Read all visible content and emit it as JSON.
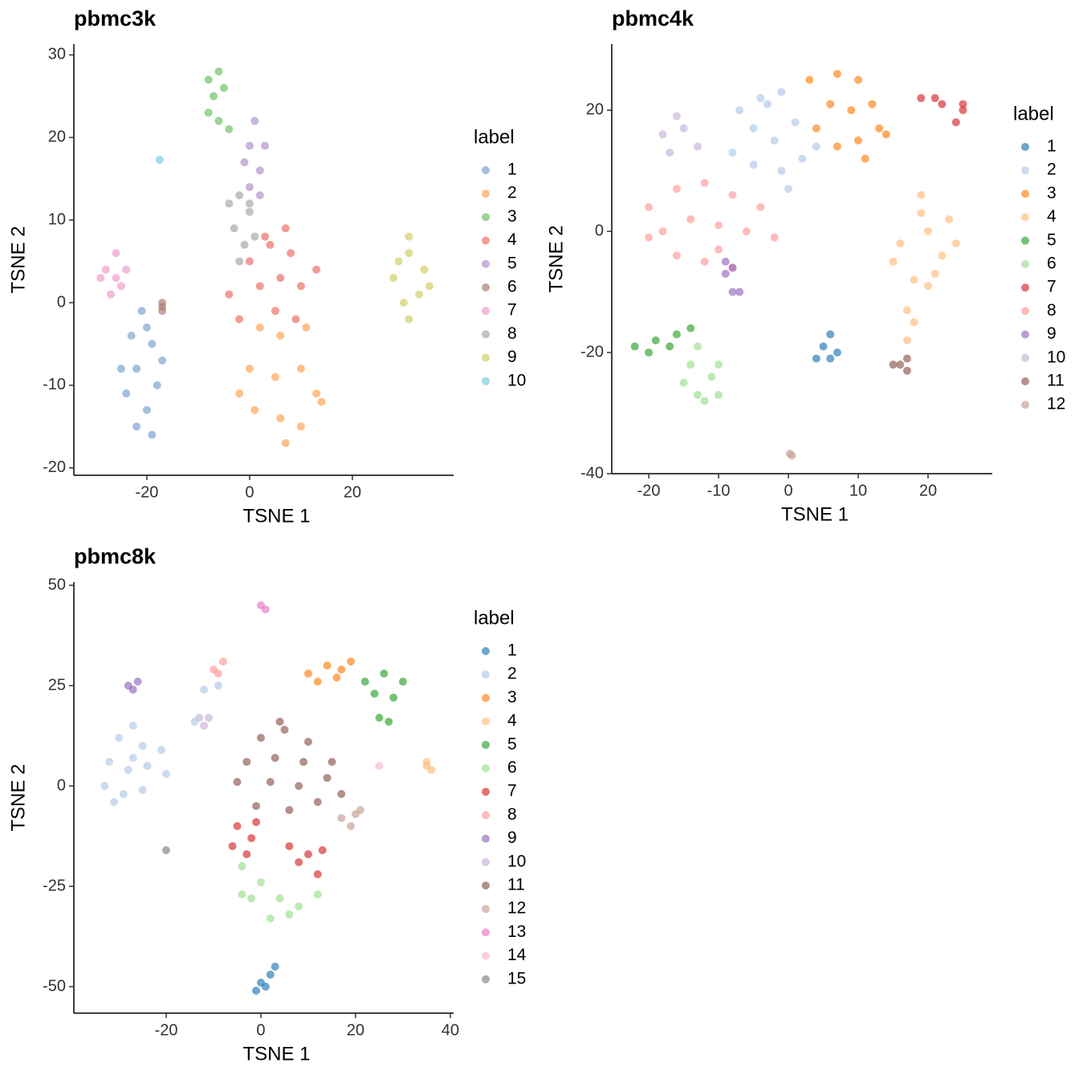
{
  "chart_data": [
    {
      "type": "scatter",
      "title": "pbmc3k",
      "x_label": "TSNE 1",
      "y_label": "TSNE 2",
      "legend_title": "label",
      "xlim": [
        -34.2,
        39.7
      ],
      "ylim": [
        -20.9,
        31.3
      ],
      "xticks": [
        -20,
        0,
        20
      ],
      "yticks": [
        -20,
        -10,
        0,
        10,
        20,
        30
      ],
      "series": [
        {
          "name": "1",
          "color": "#729ECE",
          "x": [
            -21,
            -23,
            -19,
            -22,
            -18,
            -24,
            -20,
            -22,
            -19,
            -17,
            -25,
            -20
          ],
          "y": [
            -1,
            -4,
            -5,
            -8,
            -10,
            -11,
            -13,
            -15,
            -16,
            -7,
            -8,
            -3
          ]
        },
        {
          "name": "2",
          "color": "#FF9E4A",
          "x": [
            2,
            6,
            11,
            0,
            5,
            10,
            13,
            1,
            6,
            10,
            7,
            14,
            -2
          ],
          "y": [
            -3,
            -4,
            -3,
            -8,
            -9,
            -8,
            -11,
            -13,
            -14,
            -15,
            -17,
            -12,
            -11
          ]
        },
        {
          "name": "3",
          "color": "#67BF5C",
          "x": [
            -8,
            -7,
            -5,
            -8,
            -6,
            -6,
            -4
          ],
          "y": [
            27,
            25,
            26,
            23,
            28,
            22,
            21
          ]
        },
        {
          "name": "4",
          "color": "#ED665D",
          "x": [
            0,
            4,
            8,
            -4,
            2,
            6,
            10,
            13,
            -2,
            5,
            9,
            7,
            3
          ],
          "y": [
            5,
            7,
            6,
            1,
            2,
            3,
            2,
            4,
            -2,
            -1,
            -2,
            9,
            8
          ]
        },
        {
          "name": "5",
          "color": "#AD8BC9",
          "x": [
            0,
            1,
            -1,
            2,
            3,
            0,
            2
          ],
          "y": [
            19,
            22,
            17,
            16,
            19,
            14,
            13
          ]
        },
        {
          "name": "6",
          "color": "#A8786E",
          "x": [
            -17,
            -17,
            -17
          ],
          "y": [
            -1,
            0,
            -0.5
          ]
        },
        {
          "name": "7",
          "color": "#ED97CA",
          "x": [
            -28,
            -26,
            -25,
            -27,
            -29,
            -24,
            -26
          ],
          "y": [
            4,
            6,
            2,
            1,
            3,
            4,
            3
          ]
        },
        {
          "name": "8",
          "color": "#A2A2A2",
          "x": [
            -2,
            0,
            -3,
            -1,
            1,
            -2,
            0,
            -4
          ],
          "y": [
            13,
            11,
            9,
            7,
            8,
            5,
            12,
            12
          ]
        },
        {
          "name": "9",
          "color": "#CDCC5D",
          "x": [
            31,
            28,
            34,
            30,
            33,
            31,
            29,
            35,
            31
          ],
          "y": [
            6,
            3,
            4,
            0,
            1,
            -2,
            5,
            2,
            8
          ]
        },
        {
          "name": "10",
          "color": "#6DCCDA",
          "x": [
            -17.5
          ],
          "y": [
            17.3
          ]
        }
      ]
    },
    {
      "type": "scatter",
      "title": "pbmc4k",
      "x_label": "TSNE 1",
      "y_label": "TSNE 2",
      "legend_title": "label",
      "xlim": [
        -25.3,
        29.2
      ],
      "ylim": [
        -40,
        30.9
      ],
      "xticks": [
        -20,
        -10,
        0,
        10,
        20
      ],
      "yticks": [
        -40,
        -20,
        0,
        20
      ],
      "series": [
        {
          "name": "1",
          "color": "#1F77B4",
          "x": [
            5,
            6,
            7,
            4,
            6
          ],
          "y": [
            -19,
            -17,
            -20,
            -21,
            -21
          ]
        },
        {
          "name": "2",
          "color": "#AEC7E8",
          "x": [
            -7,
            -4,
            -1,
            -5,
            -2,
            1,
            -5,
            -1,
            2,
            4,
            -8,
            0,
            -3
          ],
          "y": [
            20,
            22,
            23,
            17,
            15,
            18,
            11,
            10,
            12,
            14,
            13,
            7,
            21
          ]
        },
        {
          "name": "3",
          "color": "#FF7F0E",
          "x": [
            3,
            7,
            10,
            6,
            9,
            12,
            13,
            10,
            7,
            4,
            11,
            14
          ],
          "y": [
            25,
            26,
            25,
            21,
            20,
            21,
            17,
            15,
            14,
            17,
            12,
            16
          ]
        },
        {
          "name": "4",
          "color": "#FFBB78",
          "x": [
            16,
            20,
            22,
            18,
            23,
            19,
            17,
            20,
            15,
            21,
            18,
            17,
            24,
            19
          ],
          "y": [
            -2,
            0,
            -4,
            -8,
            2,
            3,
            -13,
            -9,
            -5,
            -7,
            -15,
            -18,
            -2,
            6
          ]
        },
        {
          "name": "5",
          "color": "#2CA02C",
          "x": [
            -22,
            -19,
            -16,
            -20,
            -14,
            -17
          ],
          "y": [
            -19,
            -18,
            -17,
            -20,
            -16,
            -19
          ]
        },
        {
          "name": "6",
          "color": "#98DF8A",
          "x": [
            -14,
            -11,
            -13,
            -10,
            -15,
            -12,
            -10,
            -13
          ],
          "y": [
            -22,
            -24,
            -27,
            -22,
            -25,
            -28,
            -27,
            -19
          ]
        },
        {
          "name": "7",
          "color": "#D62728",
          "x": [
            19,
            22,
            25,
            24,
            21,
            25
          ],
          "y": [
            22,
            21,
            20,
            18,
            22,
            21
          ]
        },
        {
          "name": "8",
          "color": "#FF9896",
          "x": [
            -20,
            -16,
            -12,
            -8,
            -4,
            -18,
            -14,
            -10,
            -6,
            -2,
            -16,
            -12,
            -8,
            -20,
            -10
          ],
          "y": [
            4,
            7,
            8,
            6,
            4,
            0,
            2,
            1,
            0,
            -1,
            -4,
            -5,
            -6,
            -1,
            -3
          ]
        },
        {
          "name": "9",
          "color": "#9467BD",
          "x": [
            -9,
            -8,
            -7,
            -8,
            -9
          ],
          "y": [
            -7,
            -6,
            -10,
            -10,
            -5
          ]
        },
        {
          "name": "10",
          "color": "#C5B0D5",
          "x": [
            -18,
            -15,
            -17,
            -13,
            -16
          ],
          "y": [
            16,
            17,
            13,
            14,
            19
          ]
        },
        {
          "name": "11",
          "color": "#8C564B",
          "x": [
            16,
            17,
            15,
            17
          ],
          "y": [
            -22,
            -23,
            -22,
            -21
          ]
        },
        {
          "name": "12",
          "color": "#C49C94",
          "x": [
            0.5,
            0.2
          ],
          "y": [
            -37,
            -36.7
          ]
        }
      ]
    },
    {
      "type": "scatter",
      "title": "pbmc8k",
      "x_label": "TSNE 1",
      "y_label": "TSNE 2",
      "legend_title": "label",
      "xlim": [
        -39.5,
        40.7
      ],
      "ylim": [
        -56.6,
        50.8
      ],
      "xticks": [
        -20,
        0,
        20,
        40
      ],
      "yticks": [
        -50,
        -25,
        0,
        25,
        50
      ],
      "series": [
        {
          "name": "1",
          "color": "#1F77B4",
          "x": [
            0,
            2,
            -1,
            3,
            1
          ],
          "y": [
            -49,
            -47,
            -51,
            -45,
            -50
          ]
        },
        {
          "name": "2",
          "color": "#AEC7E8",
          "x": [
            -30,
            -27,
            -25,
            -32,
            -28,
            -24,
            -20,
            -33,
            -29,
            -25,
            -31,
            -27,
            -21,
            -12,
            -9,
            -14
          ],
          "y": [
            12,
            15,
            10,
            6,
            4,
            5,
            3,
            0,
            -2,
            -1,
            -4,
            7,
            9,
            24,
            25,
            16
          ]
        },
        {
          "name": "3",
          "color": "#FF7F0E",
          "x": [
            10,
            14,
            17,
            12,
            16,
            19
          ],
          "y": [
            28,
            30,
            29,
            26,
            27,
            31
          ]
        },
        {
          "name": "4",
          "color": "#FFBB78",
          "x": [
            35,
            36,
            35
          ],
          "y": [
            5,
            4,
            6
          ]
        },
        {
          "name": "5",
          "color": "#2CA02C",
          "x": [
            22,
            26,
            30,
            24,
            28,
            25,
            27
          ],
          "y": [
            26,
            28,
            26,
            23,
            22,
            17,
            16
          ]
        },
        {
          "name": "6",
          "color": "#98DF8A",
          "x": [
            -4,
            0,
            -2,
            4,
            8,
            2,
            -4,
            12,
            6
          ],
          "y": [
            -20,
            -24,
            -28,
            -28,
            -30,
            -33,
            -27,
            -27,
            -32
          ]
        },
        {
          "name": "7",
          "color": "#D62728",
          "x": [
            -5,
            -2,
            -6,
            -3,
            6,
            10,
            13,
            12,
            8,
            -1
          ],
          "y": [
            -10,
            -13,
            -15,
            -17,
            -15,
            -17,
            -16,
            -22,
            -19,
            -9
          ]
        },
        {
          "name": "8",
          "color": "#FF9896",
          "x": [
            -9,
            -8,
            -10
          ],
          "y": [
            28,
            31,
            29
          ]
        },
        {
          "name": "9",
          "color": "#9467BD",
          "x": [
            -28,
            -27,
            -26
          ],
          "y": [
            25,
            24,
            26
          ]
        },
        {
          "name": "10",
          "color": "#C5B0D5",
          "x": [
            -13,
            -12,
            -11
          ],
          "y": [
            17,
            15,
            17
          ]
        },
        {
          "name": "11",
          "color": "#8C564B",
          "x": [
            0,
            5,
            10,
            -3,
            3,
            9,
            15,
            -5,
            2,
            8,
            14,
            -1,
            6,
            12,
            4,
            17
          ],
          "y": [
            12,
            14,
            11,
            6,
            7,
            6,
            6,
            1,
            1,
            0,
            2,
            -5,
            -6,
            -4,
            16,
            -2
          ]
        },
        {
          "name": "12",
          "color": "#C49C94",
          "x": [
            17,
            20,
            19,
            21
          ],
          "y": [
            -8,
            -7,
            -10,
            -6
          ]
        },
        {
          "name": "13",
          "color": "#E377C2",
          "x": [
            0,
            1
          ],
          "y": [
            45,
            44
          ]
        },
        {
          "name": "14",
          "color": "#F7B6D2",
          "x": [
            25
          ],
          "y": [
            5
          ]
        },
        {
          "name": "15",
          "color": "#7F7F7F",
          "x": [
            -20
          ],
          "y": [
            -16
          ]
        }
      ]
    }
  ]
}
